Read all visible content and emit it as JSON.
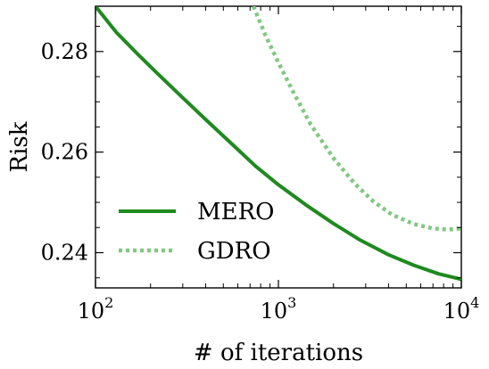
{
  "chart_data": {
    "type": "line",
    "xscale": "log",
    "xlabel": "# of iterations",
    "ylabel": "Risk",
    "xlim": [
      100,
      10000
    ],
    "ylim": [
      0.233,
      0.289
    ],
    "xticks": [
      {
        "value": 100,
        "base": "10",
        "exp": "2"
      },
      {
        "value": 1000,
        "base": "10",
        "exp": "3"
      },
      {
        "value": 10000,
        "base": "10",
        "exp": "4"
      }
    ],
    "yticks": [
      {
        "value": 0.24,
        "label": "0.24"
      },
      {
        "value": 0.26,
        "label": "0.26"
      },
      {
        "value": 0.28,
        "label": "0.28"
      }
    ],
    "grid": false,
    "legend_position": "lower-left",
    "series": [
      {
        "name": "MERO",
        "color": "#1f8a1f",
        "style": "solid",
        "x": [
          100,
          130,
          170,
          220,
          300,
          400,
          550,
          750,
          1000,
          1400,
          2000,
          2800,
          4000,
          5500,
          7500,
          10000
        ],
        "y": [
          0.289,
          0.2838,
          0.2795,
          0.2755,
          0.2708,
          0.2665,
          0.2618,
          0.2572,
          0.2535,
          0.2496,
          0.2458,
          0.2425,
          0.2396,
          0.2375,
          0.2358,
          0.2347
        ]
      },
      {
        "name": "GDRO",
        "color": "#82c882",
        "style": "dotted",
        "x": [
          730,
          850,
          1000,
          1200,
          1500,
          2000,
          2600,
          3300,
          4200,
          5500,
          7000,
          8500,
          10000
        ],
        "y": [
          0.289,
          0.2832,
          0.2778,
          0.2721,
          0.2655,
          0.2588,
          0.2538,
          0.2502,
          0.2475,
          0.2457,
          0.2448,
          0.2446,
          0.2448
        ]
      }
    ]
  }
}
